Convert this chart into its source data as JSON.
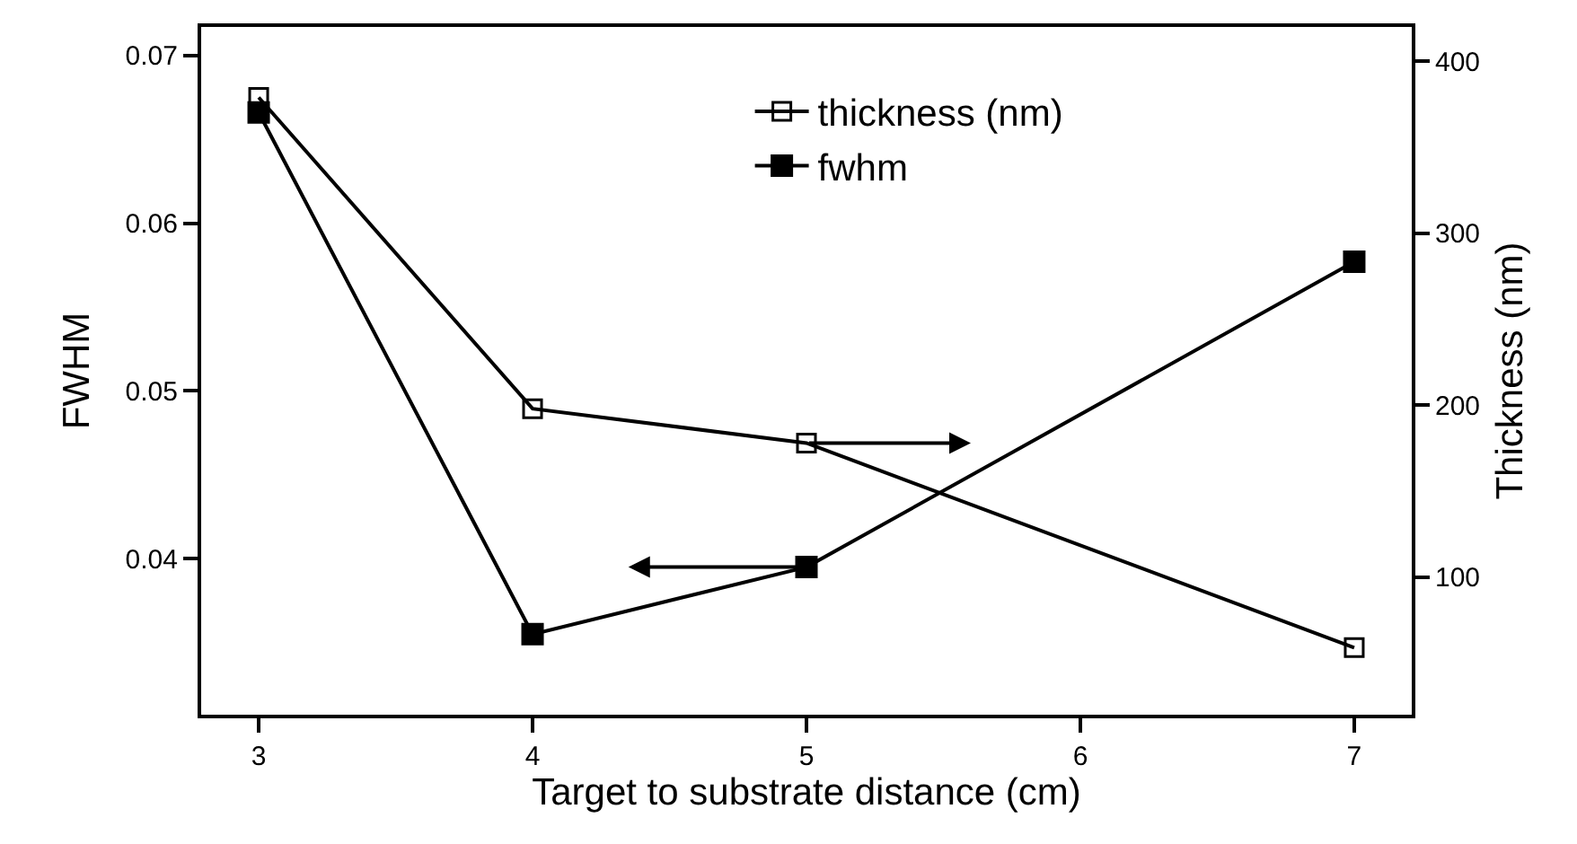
{
  "chart_data": {
    "type": "line",
    "xlabel": "Target to substrate distance (cm)",
    "ylabel": "FWHM",
    "y2label": "Thickness (nm)",
    "x": [
      3,
      4,
      5,
      7
    ],
    "series": [
      {
        "name": "thickness (nm)",
        "color": "#000000",
        "axis": "y2",
        "values": [
          379,
          198,
          178,
          59
        ]
      },
      {
        "name": "fwhm",
        "color": "#000000",
        "values": [
          0.0666,
          0.0355,
          0.0395,
          0.0577
        ]
      }
    ],
    "xlim": [
      2.79,
      7.21
    ],
    "xticks": [
      3,
      4,
      5,
      6,
      7
    ],
    "ylim": [
      0.0307,
      0.0717
    ],
    "yticks": [
      0.04,
      0.05,
      0.06,
      0.07
    ],
    "y2lim": [
      20,
      420
    ],
    "y2ticks": [
      100,
      200,
      300,
      400
    ],
    "grid": false,
    "legend": "top right",
    "marker": "square",
    "line_style": "solid"
  }
}
